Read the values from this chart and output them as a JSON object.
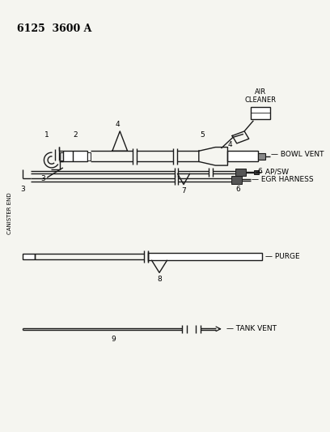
{
  "title": "6125  3600 A",
  "bg_color": "#f5f5f0",
  "line_color": "#1a1a1a",
  "labels": {
    "air_cleaner": "AIR\nCLEANER",
    "bowl_vent": "BOWL VENT",
    "ap_sw": "AP/SW",
    "egr_harness": "EGR HARNESS",
    "purge": "PURGE",
    "tank_vent": "TANK VENT",
    "canister_end": "CANISTER END"
  },
  "figsize": [
    4.08,
    5.33
  ],
  "dpi": 100
}
